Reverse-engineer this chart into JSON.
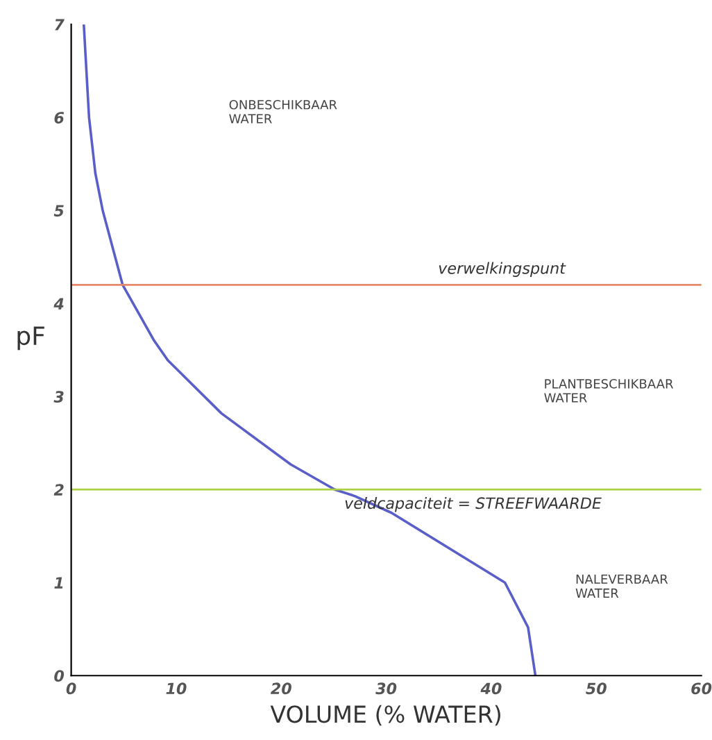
{
  "chart_data": {
    "type": "line",
    "xlabel": "VOLUME (% WATER)",
    "ylabel": "pF",
    "x": [
      1.2,
      1.7,
      2.3,
      3.0,
      4.9,
      7.9,
      9.2,
      14.3,
      20.9,
      25.1,
      27.0,
      30.5,
      41.3,
      43.5,
      44.2
    ],
    "series": [
      {
        "color": "#5a5ec8",
        "values": [
          7,
          6,
          5.4,
          5,
          4.2,
          3.6,
          3.39,
          2.82,
          2.27,
          2.0,
          1.93,
          1.75,
          1.0,
          0.52,
          0
        ]
      }
    ],
    "xlim": [
      0,
      60
    ],
    "ylim": [
      0,
      7
    ],
    "xticks": [
      0,
      10,
      20,
      30,
      40,
      50,
      60
    ],
    "yticks": [
      0,
      1,
      2,
      3,
      4,
      5,
      6,
      7
    ],
    "ref_lines": [
      {
        "axis": "y",
        "value": 4.2,
        "label": "verwelkingspunt",
        "color": "#e8886a"
      },
      {
        "axis": "y",
        "value": 2,
        "label": "veldcapaciteit = STREEFWAARDE",
        "color": "#a8d040"
      }
    ],
    "annotations": [
      "ONBESCHIKBAAR\nWATER",
      "PLANTBESCHIKBAAR\nWATER",
      "NALEVERBAAR\nWATER"
    ],
    "grid": false,
    "legend": false,
    "marker": "none",
    "line_style": "solid"
  }
}
